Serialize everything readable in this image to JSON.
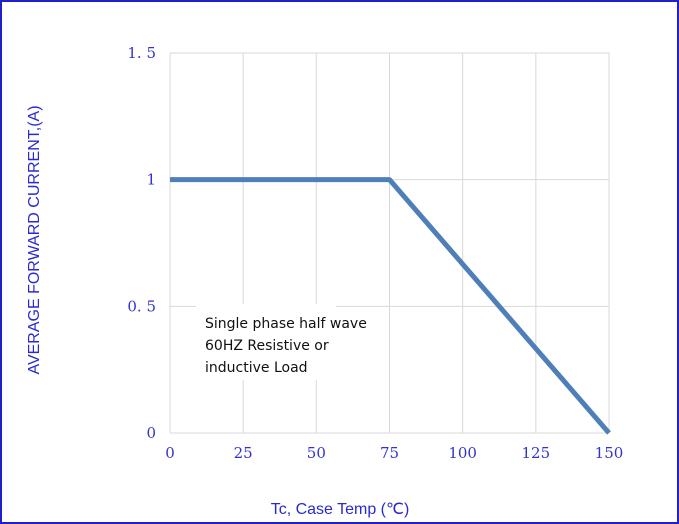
{
  "chart_data": {
    "type": "line",
    "title": "",
    "xlabel": "Tc, Case Temp (℃)",
    "ylabel": "AVERAGE FORWARD CURRENT,(A)",
    "xlim": [
      0,
      150
    ],
    "ylim": [
      0,
      1.5
    ],
    "x_ticks": [
      "0",
      "25",
      "50",
      "75",
      "100",
      "125",
      "150"
    ],
    "y_ticks": [
      "0",
      "0. 5",
      "1",
      "1. 5"
    ],
    "grid": true,
    "series": [
      {
        "x": [
          0,
          75,
          150
        ],
        "y": [
          1,
          1,
          0
        ],
        "color": "#4f7fb8"
      }
    ],
    "annotation": [
      "Single phase half wave",
      "60HZ Resistive or",
      "inductive Load"
    ]
  },
  "colors": {
    "frame": "#2020c8",
    "text": "#3333cc",
    "grid": "#d9d9d9",
    "line": "#4f7fb8"
  }
}
